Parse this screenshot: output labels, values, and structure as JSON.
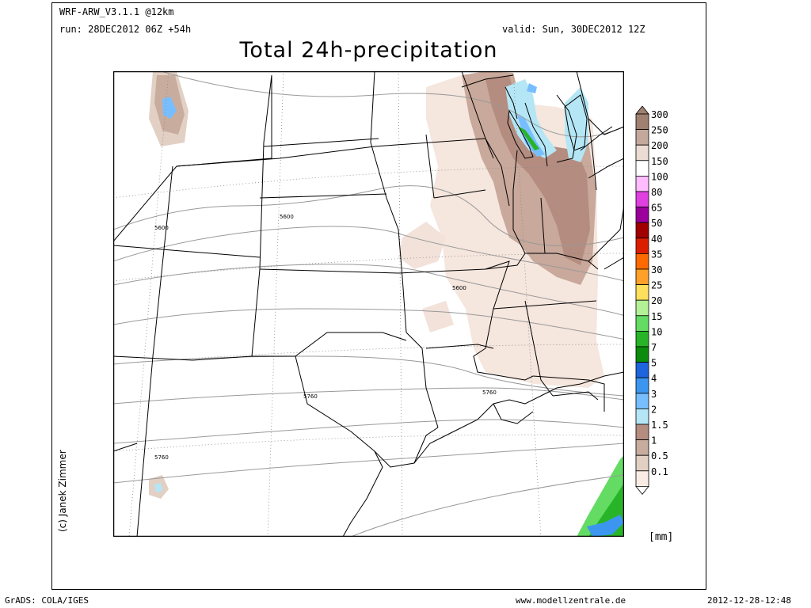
{
  "header": {
    "model": "WRF-ARW_V3.1.1 @12km",
    "run": "run: 28DEC2012 06Z +54h",
    "valid": "valid: Sun, 30DEC2012 12Z",
    "title": "Total 24h-precipitation"
  },
  "credit": "(c) Janek Zimmer",
  "legend": {
    "unit": "[mm]",
    "classes": [
      {
        "label": "300",
        "color": "#a08070"
      },
      {
        "label": "250",
        "color": "#c4a89c"
      },
      {
        "label": "200",
        "color": "#ecdcd4"
      },
      {
        "label": "150",
        "color": "#ffffff"
      },
      {
        "label": "100",
        "color": "#ffbcff"
      },
      {
        "label": "80",
        "color": "#e040e0"
      },
      {
        "label": "65",
        "color": "#9c009c"
      },
      {
        "label": "50",
        "color": "#a00000"
      },
      {
        "label": "40",
        "color": "#dc1e00"
      },
      {
        "label": "35",
        "color": "#ff6a00"
      },
      {
        "label": "30",
        "color": "#ffa028"
      },
      {
        "label": "25",
        "color": "#ffe05c"
      },
      {
        "label": "20",
        "color": "#b4f096"
      },
      {
        "label": "15",
        "color": "#64dc64"
      },
      {
        "label": "10",
        "color": "#28b428"
      },
      {
        "label": "7",
        "color": "#0c8c0c"
      },
      {
        "label": "5",
        "color": "#1e64dc"
      },
      {
        "label": "4",
        "color": "#3c96f0"
      },
      {
        "label": "3",
        "color": "#78beff"
      },
      {
        "label": "2",
        "color": "#b4e6f5"
      },
      {
        "label": "1.5",
        "color": "#b48c80"
      },
      {
        "label": "1",
        "color": "#c8ac9e"
      },
      {
        "label": "0.5",
        "color": "#e2d0c4"
      },
      {
        "label": "0.1",
        "color": "#f8ece4"
      }
    ]
  },
  "contours": {
    "labels": [
      "5600",
      "5600",
      "5600",
      "5760",
      "5760",
      "5760"
    ]
  },
  "footer": {
    "left": "GrADS: COLA/IGES",
    "center": "www.modellzentrale.de",
    "right": "2012-12-28-12:48"
  }
}
